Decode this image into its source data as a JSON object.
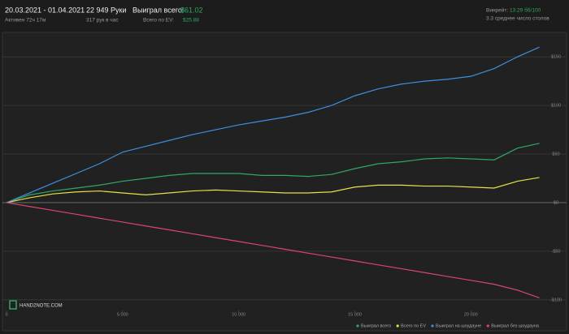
{
  "header": {
    "date_range": "20.03.2021 - 01.04.2021",
    "active": "Активен 72ч 17м",
    "hands": "22 949 Руки",
    "hands_per_hour": "317 рук в час",
    "won_label": "Выиграл всего:",
    "won_value": "$61.02",
    "ev_label": "Всего по EV:",
    "ev_value": "$25.88",
    "winrate_label": "Винрейт:",
    "winrate_value": "13.29 бб/100",
    "tables": "3.3 среднее число столов"
  },
  "logo": "HAND2NOTE.COM",
  "chart_data": {
    "type": "line",
    "x": [
      0,
      1000,
      2000,
      3000,
      4000,
      5000,
      6000,
      7000,
      8000,
      9000,
      10000,
      11000,
      12000,
      13000,
      14000,
      15000,
      16000,
      17000,
      18000,
      19000,
      20000,
      21000,
      22000,
      22949
    ],
    "series": [
      {
        "name": "Выиграл всего",
        "color": "#2fa866",
        "values": [
          0,
          8,
          12,
          15,
          18,
          22,
          25,
          28,
          30,
          30,
          30,
          28,
          28,
          27,
          29,
          35,
          40,
          42,
          45,
          46,
          45,
          44,
          56,
          61.02
        ]
      },
      {
        "name": "Всего по EV",
        "color": "#e6e04a",
        "values": [
          0,
          5,
          9,
          11,
          12,
          10,
          8,
          10,
          12,
          13,
          12,
          11,
          10,
          10,
          11,
          16,
          18,
          18,
          17,
          17,
          16,
          15,
          22,
          25.88
        ]
      },
      {
        "name": "Выиграл на шоудауне",
        "color": "#3d8fe0",
        "values": [
          0,
          10,
          20,
          30,
          40,
          52,
          58,
          64,
          70,
          75,
          80,
          84,
          88,
          93,
          100,
          110,
          117,
          122,
          125,
          127,
          130,
          138,
          150,
          160
        ]
      },
      {
        "name": "Выиграл без шоудауна",
        "color": "#d9466c",
        "values": [
          0,
          -4,
          -8,
          -12,
          -16,
          -20,
          -24,
          -28,
          -32,
          -36,
          -40,
          -44,
          -48,
          -52,
          -56,
          -60,
          -64,
          -68,
          -72,
          -76,
          -80,
          -84,
          -90,
          -98
        ]
      }
    ],
    "xlim": [
      0,
      23000
    ],
    "xticks": [
      0,
      {
        "value": 5000,
        "label": "5 000"
      },
      {
        "value": 10000,
        "label": "10 000"
      },
      {
        "value": 15000,
        "label": "15 000"
      },
      {
        "value": 20000,
        "label": "20 000"
      }
    ],
    "ylim": [
      -111,
      171
    ],
    "yticks": [
      {
        "value": 150,
        "label": "$150"
      },
      {
        "value": 100,
        "label": "$100"
      },
      {
        "value": 50,
        "label": "$50"
      },
      {
        "value": 0,
        "label": "$0"
      },
      {
        "value": -50,
        "label": "-$50"
      },
      {
        "value": -100,
        "label": "-$100"
      }
    ],
    "grid": true
  }
}
